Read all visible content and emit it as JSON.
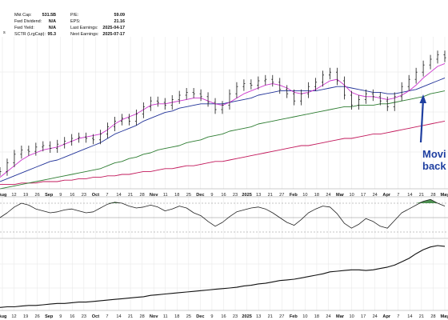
{
  "stats": {
    "left": [
      {
        "label": "Mkt Cap:",
        "value": "531.5B"
      },
      {
        "label": "Fwd Dividend:",
        "value": "N/A"
      },
      {
        "label": "Fwd Yield:",
        "value": "N/A"
      },
      {
        "label": "SCTR (LrgCap):",
        "value": "95.3"
      }
    ],
    "right": [
      {
        "label": "P/E:",
        "value": "59.09"
      },
      {
        "label": "EPS:",
        "value": "21.16"
      },
      {
        "label": "Last Earnings:",
        "value": "2025-04-17"
      },
      {
        "label": "Next Earnings:",
        "value": "2025-07-17"
      }
    ],
    "edge_text": "s"
  },
  "annotation": {
    "line1": "Movi",
    "line2": "back"
  },
  "colors": {
    "price": "#1a1a1a",
    "ma_fast": "#cc33cc",
    "ma_mid": "#223399",
    "ma_slow": "#2e7d32",
    "ma_long": "#c2185b",
    "arrow": "#1f3fa0",
    "osc_fill": "#2e7d32",
    "grid": "#e4e4e4"
  },
  "chart_data": {
    "type": "line",
    "x_tick_labels": [
      "Aug",
      "12",
      "19",
      "26",
      "Sep",
      "9",
      "16",
      "23",
      "Oct",
      "7",
      "14",
      "21",
      "28",
      "Nov",
      "11",
      "18",
      "25",
      "Dec",
      "9",
      "16",
      "23",
      "2025",
      "13",
      "21",
      "27",
      "Feb",
      "10",
      "18",
      "24",
      "Mar",
      "10",
      "17",
      "24",
      "Apr",
      "7",
      "14",
      "21",
      "28",
      "May"
    ],
    "bold_ticks": [
      "Aug",
      "Sep",
      "Oct",
      "Nov",
      "Dec",
      "2025",
      "Feb",
      "Mar",
      "Apr",
      "May"
    ],
    "price_panel": {
      "ohlc_close": [
        12,
        18,
        24,
        27,
        26,
        29,
        30,
        28,
        31,
        33,
        35,
        36,
        35,
        34,
        38,
        43,
        47,
        49,
        47,
        52,
        57,
        61,
        60,
        58,
        62,
        65,
        67,
        66,
        64,
        60,
        55,
        58,
        66,
        71,
        73,
        72,
        75,
        76,
        74,
        69,
        66,
        61,
        66,
        71,
        74,
        79,
        81,
        75,
        65,
        58,
        62,
        66,
        64,
        61,
        57,
        64,
        71,
        76,
        81,
        86,
        90,
        93,
        91
      ],
      "ma_fast": [
        8,
        12,
        16,
        20,
        23,
        25,
        27,
        28,
        29,
        31,
        33,
        35,
        36,
        37,
        38,
        41,
        45,
        48,
        50,
        52,
        55,
        58,
        59,
        59,
        60,
        61,
        62,
        63,
        63,
        61,
        59,
        58,
        60,
        63,
        66,
        68,
        70,
        72,
        73,
        72,
        70,
        67,
        66,
        67,
        69,
        72,
        75,
        76,
        72,
        67,
        65,
        64,
        64,
        63,
        62,
        63,
        65,
        68,
        72,
        77,
        81,
        85,
        87
      ],
      "ma_mid": [
        5,
        7,
        9,
        11,
        13,
        15,
        17,
        19,
        20,
        22,
        24,
        26,
        28,
        30,
        32,
        35,
        38,
        40,
        42,
        44,
        47,
        49,
        51,
        53,
        54,
        56,
        57,
        58,
        59,
        59,
        59,
        59,
        60,
        61,
        62,
        63,
        65,
        66,
        67,
        68,
        68,
        68,
        68,
        68,
        68,
        69,
        70,
        71,
        71,
        70,
        69,
        68,
        67,
        67,
        66,
        66,
        67,
        68,
        69,
        71,
        73,
        75,
        77
      ],
      "ma_slow": [
        0,
        1,
        2,
        3,
        4,
        5,
        6,
        7,
        8,
        9,
        10,
        11,
        12,
        13,
        14,
        16,
        18,
        19,
        21,
        22,
        24,
        25,
        27,
        28,
        29,
        30,
        32,
        33,
        34,
        36,
        37,
        38,
        40,
        41,
        42,
        43,
        45,
        46,
        47,
        48,
        49,
        50,
        51,
        52,
        53,
        54,
        55,
        56,
        57,
        57,
        58,
        58,
        58,
        59,
        59,
        60,
        61,
        62,
        63,
        64,
        66,
        67,
        68
      ],
      "ma_long": [
        3,
        3,
        3,
        4,
        4,
        4,
        5,
        5,
        5,
        6,
        6,
        7,
        7,
        8,
        8,
        9,
        9,
        10,
        10,
        11,
        12,
        12,
        13,
        14,
        14,
        15,
        16,
        16,
        17,
        18,
        19,
        19,
        20,
        21,
        22,
        23,
        24,
        25,
        26,
        27,
        28,
        29,
        30,
        30,
        31,
        32,
        33,
        34,
        35,
        35,
        36,
        37,
        38,
        38,
        39,
        40,
        41,
        42,
        43,
        44,
        45,
        46,
        47
      ]
    },
    "oscillator_panel": {
      "values": [
        0,
        10,
        22,
        30,
        26,
        18,
        14,
        10,
        12,
        16,
        18,
        14,
        10,
        12,
        20,
        28,
        32,
        30,
        24,
        20,
        22,
        26,
        22,
        14,
        18,
        24,
        20,
        10,
        4,
        -8,
        -18,
        -10,
        2,
        12,
        16,
        20,
        22,
        18,
        10,
        0,
        -10,
        -16,
        -4,
        10,
        18,
        24,
        22,
        8,
        -12,
        -22,
        -14,
        -2,
        -8,
        -18,
        -22,
        -6,
        10,
        18,
        26,
        34,
        38,
        30,
        24
      ],
      "reference_lines": [
        30,
        0,
        -30
      ]
    },
    "lower_panel": {
      "values": [
        2,
        3,
        3,
        4,
        5,
        5,
        6,
        7,
        8,
        8,
        9,
        10,
        10,
        11,
        12,
        13,
        14,
        15,
        16,
        17,
        18,
        20,
        21,
        22,
        23,
        24,
        25,
        26,
        27,
        28,
        29,
        30,
        31,
        32,
        34,
        35,
        37,
        38,
        40,
        42,
        43,
        44,
        46,
        48,
        50,
        52,
        55,
        56,
        57,
        58,
        58,
        57,
        58,
        60,
        62,
        65,
        70,
        75,
        82,
        88,
        92,
        94,
        93
      ]
    }
  }
}
